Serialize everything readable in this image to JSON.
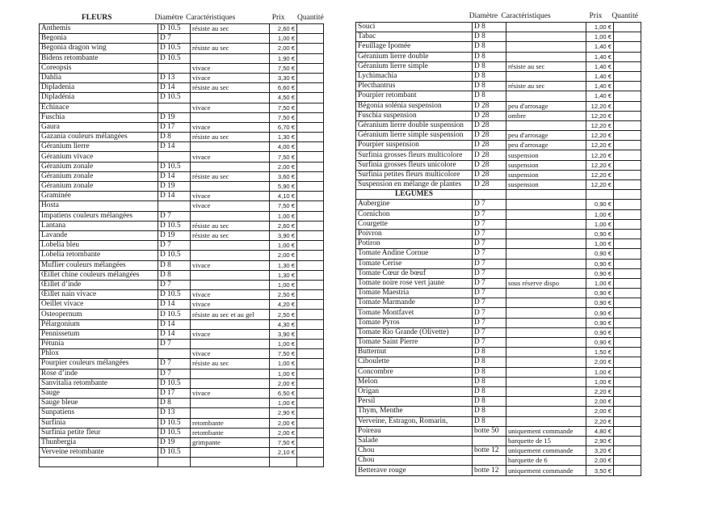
{
  "left": {
    "headers": {
      "section": "FLEURS",
      "diametre": "Diamètre",
      "caracteristiques": "Caractéristiques",
      "prix": "Prix",
      "quantite": "Quantité"
    },
    "rows": [
      {
        "name": "Anthemis",
        "diam": "D 10.5",
        "carac": "résiste au sec",
        "prix": "2,60 €"
      },
      {
        "name": "Begonia",
        "diam": "D 7",
        "carac": "",
        "prix": "1,00 €"
      },
      {
        "name": "Begonia dragon wing",
        "diam": "D 10.5",
        "carac": "résiste au sec",
        "prix": "2,00 €"
      },
      {
        "name": "Bidens retombante",
        "diam": "D 10.5",
        "carac": "",
        "prix": "1,90 €"
      },
      {
        "name": "Coreopsis",
        "diam": "",
        "carac": "vivace",
        "prix": "7,50 €"
      },
      {
        "name": "Dahlia",
        "diam": "D 13",
        "carac": "vivace",
        "prix": "3,30 €"
      },
      {
        "name": "Dipladenia",
        "diam": "D 14",
        "carac": "résiste au sec",
        "prix": "6,60 €"
      },
      {
        "name": "Dipladénia",
        "diam": "D 10.5",
        "carac": "",
        "prix": "4,50 €"
      },
      {
        "name": "Echinace",
        "diam": "",
        "carac": "vivace",
        "prix": "7,50 €"
      },
      {
        "name": "Fuschia",
        "diam": "D 19",
        "carac": "",
        "prix": "7,50 €"
      },
      {
        "name": "Gaura",
        "diam": "D 17",
        "carac": "vivace",
        "prix": "6,70 €"
      },
      {
        "name": "Gazania couleurs mélangées",
        "diam": "D 8",
        "carac": "résiste au sec",
        "prix": "1,30 €"
      },
      {
        "name": "Géranium lierre",
        "diam": "D 14",
        "carac": "",
        "prix": "4,00 €"
      },
      {
        "name": "Géranium vivace",
        "diam": "",
        "carac": "vivace",
        "prix": "7,50 €"
      },
      {
        "name": "Géranium zonale",
        "diam": "D 10.5",
        "carac": "",
        "prix": "2,00 €"
      },
      {
        "name": "Géranium zonale",
        "diam": "D 14",
        "carac": "résiste au sec",
        "prix": "3,60 €"
      },
      {
        "name": "Géranium zonale",
        "diam": "D 19",
        "carac": "",
        "prix": "5,90 €"
      },
      {
        "name": "Graminée",
        "diam": "D 14",
        "carac": "vivace",
        "prix": "4,10 €"
      },
      {
        "name": "Hosta",
        "diam": "",
        "carac": "vivace",
        "prix": "7,50 €"
      },
      {
        "name": "Impatiens couleurs mélangées",
        "diam": "D 7",
        "carac": "",
        "prix": "1,00 €"
      },
      {
        "name": "Lantana",
        "diam": "D 10.5",
        "carac": "résiste au sec",
        "prix": "2,60 €"
      },
      {
        "name": "Lavande",
        "diam": "D 19",
        "carac": "résiste au sec",
        "prix": "3,90 €"
      },
      {
        "name": "Lobelia bleu",
        "diam": "D 7",
        "carac": "",
        "prix": "1,00 €"
      },
      {
        "name": "Lobelia retombante",
        "diam": "D 10.5",
        "carac": "",
        "prix": "2,00 €"
      },
      {
        "name": "Muflier couleurs mélangées",
        "diam": "D 8",
        "carac": "vivace",
        "prix": "1,30 €"
      },
      {
        "name": "Œillet chine couleurs mélangées",
        "diam": "D 8",
        "carac": "",
        "prix": "1,30 €"
      },
      {
        "name": "Œillet d’inde",
        "diam": "D 7",
        "carac": "",
        "prix": "1,00 €"
      },
      {
        "name": "Œillet nain vivace",
        "diam": "D 10.5",
        "carac": "vivace",
        "prix": "2,50 €"
      },
      {
        "name": "Oeillet vivace",
        "diam": "D 14",
        "carac": "vivace",
        "prix": "4,20 €"
      },
      {
        "name": "Osteopernum",
        "diam": "D 10.5",
        "carac": "résiste au sec et au gel",
        "prix": "2,50 €"
      },
      {
        "name": "Pélargonium",
        "diam": "D 14",
        "carac": "",
        "prix": "4,30 €"
      },
      {
        "name": "Pennissetum",
        "diam": "D 14",
        "carac": "vivace",
        "prix": "3,90 €"
      },
      {
        "name": "Pétunia",
        "diam": "D 7",
        "carac": "",
        "prix": "1,00 €"
      },
      {
        "name": "Phlox",
        "diam": "",
        "carac": "vivace",
        "prix": "7,50 €"
      },
      {
        "name": "Pourpier couleurs mélangées",
        "diam": "D 7",
        "carac": "résiste au sec",
        "prix": "1,00 €"
      },
      {
        "name": "Rose d’inde",
        "diam": "D 7",
        "carac": "",
        "prix": "1,00 €"
      },
      {
        "name": "Sanvitalia retombante",
        "diam": "D 10.5",
        "carac": "",
        "prix": "2,00 €"
      },
      {
        "name": "Sauge",
        "diam": "D 17",
        "carac": "vivace",
        "prix": "6,50 €"
      },
      {
        "name": "Sauge bleue",
        "diam": "D 8",
        "carac": "",
        "prix": "1,00 €"
      },
      {
        "name": "Sunpatiens",
        "diam": "D 13",
        "carac": "",
        "prix": "2,90 €"
      },
      {
        "name": "Surfinia",
        "diam": "D 10.5",
        "carac": "retombante",
        "prix": "2,00 €"
      },
      {
        "name": "Surfinia petite fleur",
        "diam": "D 10.5",
        "carac": "retombante",
        "prix": "2,00 €"
      },
      {
        "name": "Thunbergia",
        "diam": "D 19",
        "carac": "grimpante",
        "prix": "7,50 €"
      },
      {
        "name": "Verveine retombante",
        "diam": "D 10.5",
        "carac": "",
        "prix": "2,10 €"
      },
      {
        "name": "",
        "diam": "",
        "carac": "",
        "prix": ""
      }
    ]
  },
  "right": {
    "headers": {
      "section": "",
      "diametre": "Diamètre",
      "caracteristiques": "Caractéristiques",
      "prix": "Prix",
      "quantite": "Quantité"
    },
    "rows": [
      {
        "name": "Souci",
        "diam": "D 8",
        "carac": "",
        "prix": "1,00 €"
      },
      {
        "name": "Tabac",
        "diam": "D 8",
        "carac": "",
        "prix": "1,00 €"
      },
      {
        "name": "Feuillage Ipomée",
        "diam": "D 8",
        "carac": "",
        "prix": "1,40 €"
      },
      {
        "name": "Géranium lierre double",
        "diam": "D 8",
        "carac": "",
        "prix": "1,40 €"
      },
      {
        "name": "Géranium lierre simple",
        "diam": "D 8",
        "carac": "résiste au sec",
        "prix": "1,40 €"
      },
      {
        "name": "Lychimachia",
        "diam": "D 8",
        "carac": "",
        "prix": "1,40 €"
      },
      {
        "name": "Plecthantrus",
        "diam": "D 8",
        "carac": "résiste au sec",
        "prix": "1,40 €"
      },
      {
        "name": "Pourpier retombant",
        "diam": "D 8",
        "carac": "",
        "prix": "1,40 €"
      },
      {
        "name": "Bégonia solénia suspension",
        "diam": "D 28",
        "carac": "peu d'arrosage",
        "prix": "12,20 €"
      },
      {
        "name": "Fuschia suspension",
        "diam": "D 28",
        "carac": "ombre",
        "prix": "12,20 €"
      },
      {
        "name": "Géranium lierre double suspension",
        "diam": "D 28",
        "carac": "",
        "prix": "12,20 €"
      },
      {
        "name": "Géranium lierre simple suspension",
        "diam": "D 28",
        "carac": "peu d'arrosage",
        "prix": "12,20 €"
      },
      {
        "name": "Pourpier suspension",
        "diam": "D 28",
        "carac": "peu d'arrosage",
        "prix": "12,20 €"
      },
      {
        "name": "Surfinia grosses fleurs multicolore",
        "diam": "D 28",
        "carac": "suspension",
        "prix": "12,20 €"
      },
      {
        "name": "Surfinia grosses fleurs unicolore",
        "diam": "D 28",
        "carac": "suspension",
        "prix": "12,20 €"
      },
      {
        "name": "Surfinia petites fleurs multicolore",
        "diam": "D 28",
        "carac": "suspension",
        "prix": "12,20 €"
      },
      {
        "name": "Suspension en mélange de plantes",
        "diam": "D 28",
        "carac": "suspension",
        "prix": "12,20 €"
      },
      {
        "name": "LEGUMES",
        "diam": "",
        "carac": "",
        "prix": "",
        "section": true
      },
      {
        "name": "Aubergine",
        "diam": "D 7",
        "carac": "",
        "prix": "0,90 €"
      },
      {
        "name": "Cornichon",
        "diam": "D 7",
        "carac": "",
        "prix": "1,00 €"
      },
      {
        "name": "Courgette",
        "diam": "D 7",
        "carac": "",
        "prix": "1,00 €"
      },
      {
        "name": "Poivron",
        "diam": "D 7",
        "carac": "",
        "prix": "0,90 €"
      },
      {
        "name": "Potiron",
        "diam": "D 7",
        "carac": "",
        "prix": "1,00 €"
      },
      {
        "name": "Tomate Andine Cornue",
        "diam": "D 7",
        "carac": "",
        "prix": "0,90 €"
      },
      {
        "name": "Tomate Cerise",
        "diam": "D 7",
        "carac": "",
        "prix": "0,90 €"
      },
      {
        "name": "Tomate Cœur de bœuf",
        "diam": "D 7",
        "carac": "",
        "prix": "0,90 €"
      },
      {
        "name": "Tomate noire rose vert jaune",
        "diam": "D 7",
        "carac": "sous réserve dispo",
        "prix": "1,00 €"
      },
      {
        "name": "Tomate Maestria",
        "diam": "D 7",
        "carac": "",
        "prix": "0,90 €"
      },
      {
        "name": "Tomate Marmande",
        "diam": "D 7",
        "carac": "",
        "prix": "0,90 €"
      },
      {
        "name": "Tomate Montfavet",
        "diam": "D 7",
        "carac": "",
        "prix": "0,90 €"
      },
      {
        "name": "Tomate Pyros",
        "diam": "D 7",
        "carac": "",
        "prix": "0,90 €"
      },
      {
        "name": "Tomate Rio Grande (Olivette)",
        "diam": "D 7",
        "carac": "",
        "prix": "0,90 €"
      },
      {
        "name": "Tomate Saint Pierre",
        "diam": "D 7",
        "carac": "",
        "prix": "0,90 €"
      },
      {
        "name": "Butternut",
        "diam": "D 8",
        "carac": "",
        "prix": "1,50 €"
      },
      {
        "name": "Ciboulette",
        "diam": "D 8",
        "carac": "",
        "prix": "2,00 €"
      },
      {
        "name": "Concombre",
        "diam": "D 8",
        "carac": "",
        "prix": "1,00 €"
      },
      {
        "name": "Melon",
        "diam": "D 8",
        "carac": "",
        "prix": "1,00 €"
      },
      {
        "name": "Origan",
        "diam": "D 8",
        "carac": "",
        "prix": "2,20 €"
      },
      {
        "name": "Persil",
        "diam": "D 8",
        "carac": "",
        "prix": "2,00 €"
      },
      {
        "name": "Thym, Menthe",
        "diam": "D 8",
        "carac": "",
        "prix": "2,00 €"
      },
      {
        "name": "Verveine, Estragon, Romarin,",
        "diam": "D 8",
        "carac": "",
        "prix": "2,20 €"
      },
      {
        "name": "Poireau",
        "diam": "botte 50",
        "carac": "uniquement commande",
        "prix": "4,80 €"
      },
      {
        "name": "Salade",
        "diam": "",
        "carac": "barquette de 15",
        "prix": "2,90 €"
      },
      {
        "name": "Chou",
        "diam": "botte 12",
        "carac": "uniquement commande",
        "prix": "3,20 €"
      },
      {
        "name": "Chou",
        "diam": "",
        "carac": "barquette de 6",
        "prix": "2,00 €"
      },
      {
        "name": "Betterave rouge",
        "diam": "botte 12",
        "carac": "uniquement commande",
        "prix": "3,50 €"
      }
    ]
  }
}
